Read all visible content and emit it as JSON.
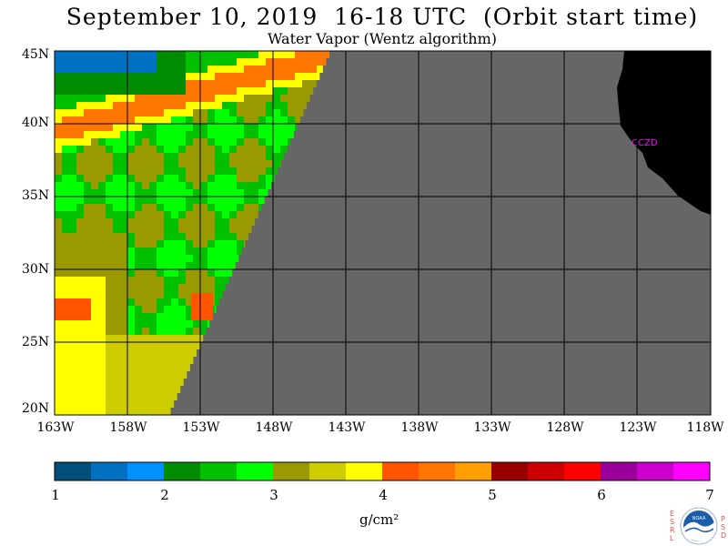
{
  "title": "September 10, 2019  16-18 UTC  (Orbit start time)",
  "subtitle": "Water Vapor (Wentz algorithm)",
  "lat_labels": [
    "45N",
    "40N",
    "35N",
    "30N",
    "25N",
    "20N"
  ],
  "lon_labels": [
    "163W",
    "158W",
    "153W",
    "148W",
    "143W",
    "138W",
    "133W",
    "128W",
    "123W",
    "118W"
  ],
  "station_label": "CZD",
  "colorbar": {
    "ticks": [
      "1",
      "2",
      "3",
      "4",
      "5",
      "6",
      "7"
    ],
    "units": "g/cm²",
    "colors": [
      "#004f7a",
      "#0070c0",
      "#0090ff",
      "#008c00",
      "#00c000",
      "#00ff00",
      "#999900",
      "#cccc00",
      "#ffff00",
      "#ff5500",
      "#ff7700",
      "#ffa000",
      "#990000",
      "#cc0000",
      "#ff0000",
      "#990099",
      "#cc00cc",
      "#ff00ff"
    ]
  },
  "logo": {
    "text": "NOAA",
    "left_letters": "ESRL",
    "right_letters": "PSD"
  },
  "colors": {
    "no_data": "#666666",
    "land": "#000000",
    "station": "#ff00ff"
  }
}
